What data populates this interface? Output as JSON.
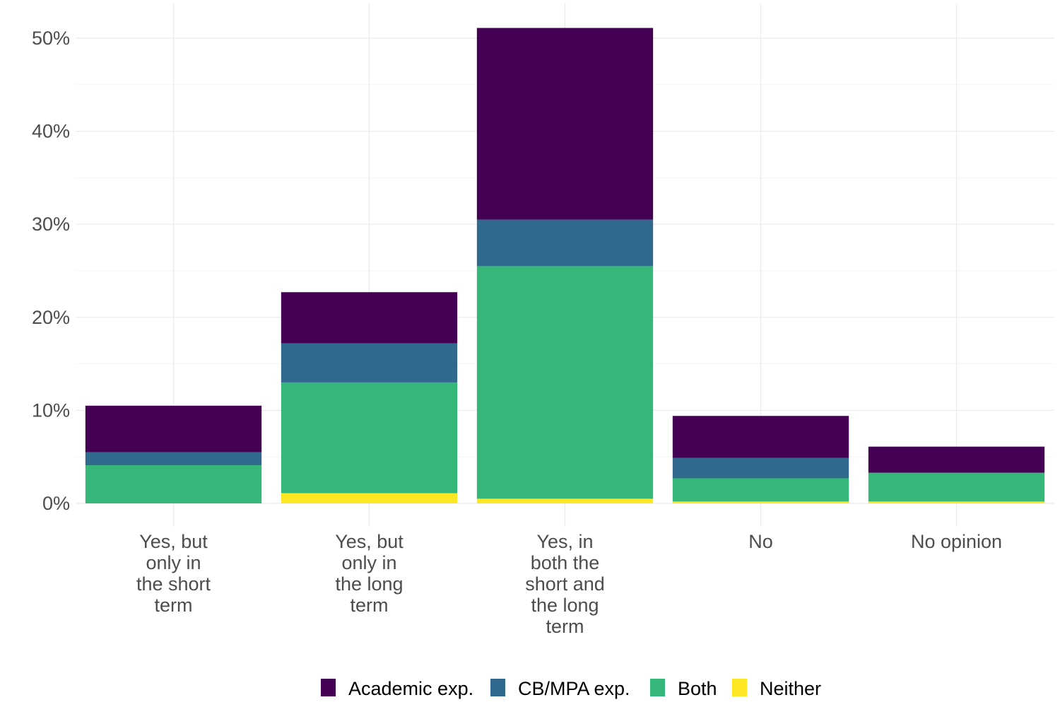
{
  "chart_data": {
    "type": "bar",
    "stacked": true,
    "title": "",
    "xlabel": "",
    "ylabel": "",
    "ylim": [
      0,
      52
    ],
    "yticks": [
      0,
      10,
      20,
      30,
      40,
      50
    ],
    "ytick_labels": [
      "0%",
      "10%",
      "20%",
      "30%",
      "40%",
      "50%"
    ],
    "grid": true,
    "legend_position": "bottom",
    "categories": [
      [
        "Yes, but",
        "only in",
        "the short",
        "term"
      ],
      [
        "Yes, but",
        "only in",
        "the long",
        "term"
      ],
      [
        "Yes, in",
        "both the",
        "short and",
        "the long",
        "term"
      ],
      [
        "No"
      ],
      [
        "No opinion"
      ]
    ],
    "series": [
      {
        "name": "Neither",
        "color": "#fde725",
        "values": [
          0.0,
          1.1,
          0.5,
          0.2,
          0.2
        ]
      },
      {
        "name": "Both",
        "color": "#35b779",
        "values": [
          4.1,
          11.9,
          25.0,
          2.5,
          3.1
        ]
      },
      {
        "name": "CB/MPA exp.",
        "color": "#31688e",
        "values": [
          1.4,
          4.2,
          5.0,
          2.2,
          0.0
        ]
      },
      {
        "name": "Academic exp.",
        "color": "#440154",
        "values": [
          5.0,
          5.5,
          20.6,
          4.5,
          2.8
        ]
      }
    ],
    "legend_order": [
      "Academic exp.",
      "CB/MPA exp.",
      "Both",
      "Neither"
    ]
  }
}
